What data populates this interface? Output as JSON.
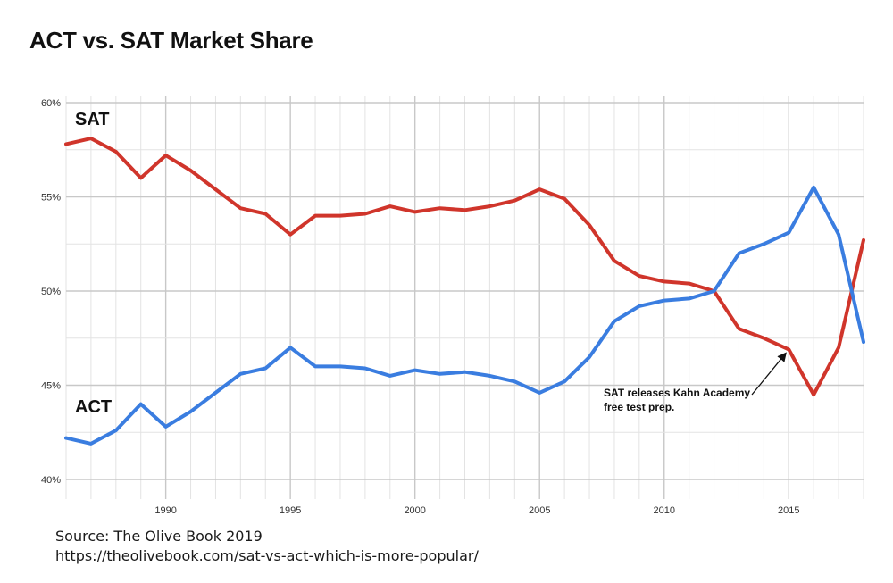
{
  "chart_data": {
    "type": "line",
    "title": "ACT vs. SAT Market Share",
    "xlabel": "",
    "ylabel": "",
    "xlim": [
      1986,
      2018
    ],
    "ylim": [
      40,
      60
    ],
    "x_ticks": [
      1990,
      1995,
      2000,
      2005,
      2010,
      2015
    ],
    "y_ticks": [
      40,
      45,
      50,
      55,
      60
    ],
    "y_tick_labels": [
      "40%",
      "45%",
      "50%",
      "55%",
      "60%"
    ],
    "grid": true,
    "x": [
      1986,
      1987,
      1988,
      1989,
      1990,
      1991,
      1992,
      1993,
      1994,
      1995,
      1996,
      1997,
      1998,
      1999,
      2000,
      2001,
      2002,
      2003,
      2004,
      2005,
      2006,
      2007,
      2008,
      2009,
      2010,
      2011,
      2012,
      2013,
      2014,
      2015,
      2016,
      2017,
      2018
    ],
    "series": [
      {
        "name": "SAT",
        "color": "#d0352b",
        "values": [
          57.8,
          58.1,
          57.4,
          56.0,
          57.2,
          56.4,
          55.4,
          54.4,
          54.1,
          53.0,
          54.0,
          54.0,
          54.1,
          54.5,
          54.2,
          54.4,
          54.3,
          54.5,
          54.8,
          55.4,
          54.9,
          53.5,
          51.6,
          50.8,
          50.5,
          50.4,
          50.0,
          48.0,
          47.5,
          46.9,
          44.5,
          47.0,
          52.7
        ]
      },
      {
        "name": "ACT",
        "color": "#3a7de0",
        "values": [
          42.2,
          41.9,
          42.6,
          44.0,
          42.8,
          43.6,
          44.6,
          45.6,
          45.9,
          47.0,
          46.0,
          46.0,
          45.9,
          45.5,
          45.8,
          45.6,
          45.7,
          45.5,
          45.2,
          44.6,
          45.2,
          46.5,
          48.4,
          49.2,
          49.5,
          49.6,
          50.0,
          52.0,
          52.5,
          53.1,
          55.5,
          53.0,
          47.3
        ]
      }
    ],
    "annotations": [
      {
        "text_lines": [
          "SAT releases Kahn Academy",
          "free test prep."
        ],
        "x": 2015,
        "y": 46.9
      }
    ]
  },
  "footer": {
    "source": "Source: The Olive Book 2019",
    "url": "https://theolivebook.com/sat-vs-act-which-is-more-popular/"
  }
}
